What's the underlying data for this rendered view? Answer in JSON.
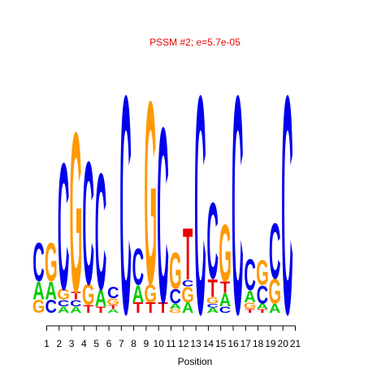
{
  "colors": {
    "A": "#00cc00",
    "C": "#0000ee",
    "G": "#ff9900",
    "T": "#ee0000",
    "title": "#ee0000",
    "axis": "#000000"
  },
  "chart_data": {
    "type": "sequence-logo",
    "title": "PSSM #2; e=5.7e-05",
    "xlabel": "Position",
    "ylabel": "",
    "ylim": [
      0,
      2
    ],
    "x_ticks": [
      "1",
      "2",
      "3",
      "4",
      "5",
      "6",
      "7",
      "8",
      "9",
      "10",
      "11",
      "12",
      "13",
      "14",
      "15",
      "16",
      "17",
      "18",
      "19",
      "20",
      "21"
    ],
    "positions": [
      {
        "pos": 1,
        "stack": [
          [
            "G",
            0.1
          ],
          [
            "A",
            0.14
          ],
          [
            "C",
            0.3
          ]
        ]
      },
      {
        "pos": 2,
        "stack": [
          [
            "C",
            0.1
          ],
          [
            "A",
            0.14
          ],
          [
            "G",
            0.3
          ]
        ]
      },
      {
        "pos": 3,
        "stack": [
          [
            "A",
            0.05
          ],
          [
            "C",
            0.05
          ],
          [
            "G",
            0.08
          ],
          [
            "C",
            0.98
          ]
        ]
      },
      {
        "pos": 4,
        "stack": [
          [
            "A",
            0.05
          ],
          [
            "C",
            0.05
          ],
          [
            "T",
            0.06
          ],
          [
            "G",
            1.24
          ]
        ]
      },
      {
        "pos": 5,
        "stack": [
          [
            "T",
            0.06
          ],
          [
            "G",
            0.16
          ],
          [
            "C",
            0.95
          ]
        ]
      },
      {
        "pos": 6,
        "stack": [
          [
            "T",
            0.05
          ],
          [
            "A",
            0.13
          ],
          [
            "C",
            0.9
          ]
        ]
      },
      {
        "pos": 7,
        "stack": [
          [
            "A",
            0.03
          ],
          [
            "T",
            0.03
          ],
          [
            "G",
            0.05
          ],
          [
            "C",
            0.09
          ]
        ]
      },
      {
        "pos": 8,
        "stack": [
          [
            "C",
            1.69
          ]
        ]
      },
      {
        "pos": 9,
        "stack": [
          [
            "T",
            0.08
          ],
          [
            "A",
            0.13
          ],
          [
            "C",
            0.28
          ]
        ]
      },
      {
        "pos": 10,
        "stack": [
          [
            "T",
            0.08
          ],
          [
            "G",
            0.14
          ],
          [
            "G",
            1.42
          ]
        ]
      },
      {
        "pos": 11,
        "stack": [
          [
            "T",
            0.08
          ],
          [
            "C",
            1.36
          ]
        ]
      },
      {
        "pos": 12,
        "stack": [
          [
            "G",
            0.03
          ],
          [
            "A",
            0.04
          ],
          [
            "C",
            0.11
          ],
          [
            "G",
            0.28
          ]
        ]
      },
      {
        "pos": 13,
        "stack": [
          [
            "A",
            0.08
          ],
          [
            "G",
            0.12
          ],
          [
            "C",
            0.05
          ],
          [
            "T",
            0.4
          ]
        ]
      },
      {
        "pos": 14,
        "stack": [
          [
            "C",
            1.69
          ]
        ]
      },
      {
        "pos": 15,
        "stack": [
          [
            "A",
            0.04
          ],
          [
            "C",
            0.03
          ],
          [
            "G",
            0.05
          ],
          [
            "T",
            0.14
          ],
          [
            "C",
            0.59
          ]
        ]
      },
      {
        "pos": 16,
        "stack": [
          [
            "C",
            0.05
          ],
          [
            "A",
            0.1
          ],
          [
            "T",
            0.09
          ],
          [
            "G",
            0.44
          ]
        ]
      },
      {
        "pos": 17,
        "stack": [
          [
            "C",
            1.69
          ]
        ]
      },
      {
        "pos": 18,
        "stack": [
          [
            "T",
            0.03
          ],
          [
            "G",
            0.05
          ],
          [
            "A",
            0.09
          ],
          [
            "C",
            0.24
          ]
        ]
      },
      {
        "pos": 19,
        "stack": [
          [
            "T",
            0.03
          ],
          [
            "A",
            0.04
          ],
          [
            "C",
            0.14
          ],
          [
            "G",
            0.19
          ]
        ]
      },
      {
        "pos": 20,
        "stack": [
          [
            "A",
            0.07
          ],
          [
            "G",
            0.19
          ],
          [
            "C",
            0.43
          ]
        ]
      },
      {
        "pos": 21,
        "stack": [
          [
            "C",
            1.69
          ]
        ]
      }
    ]
  }
}
